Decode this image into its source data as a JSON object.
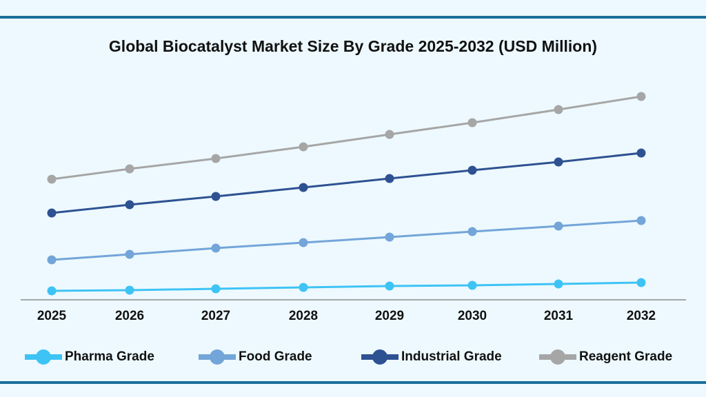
{
  "chart_data": {
    "type": "line",
    "title": "Global Biocatalyst Market Size By Grade 2025-2032 (USD Million)",
    "xlabel": "",
    "ylabel": "",
    "ylim": [
      0,
      300
    ],
    "grid": false,
    "legend_position": "bottom",
    "categories": [
      "2025",
      "2026",
      "2027",
      "2028",
      "2029",
      "2030",
      "2031",
      "2032"
    ],
    "series": [
      {
        "name": "Pharma Grade",
        "color": "#3ec3f5",
        "values": [
          13,
          14,
          16,
          18,
          20,
          21,
          23,
          25
        ]
      },
      {
        "name": "Food Grade",
        "color": "#73a5d8",
        "values": [
          58,
          66,
          75,
          83,
          91,
          99,
          107,
          115
        ]
      },
      {
        "name": "Industrial Grade",
        "color": "#2e5192",
        "values": [
          126,
          138,
          150,
          163,
          176,
          188,
          200,
          213
        ]
      },
      {
        "name": "Reagent Grade",
        "color": "#a6a6a6",
        "values": [
          175,
          190,
          205,
          222,
          240,
          257,
          276,
          295
        ]
      }
    ]
  }
}
